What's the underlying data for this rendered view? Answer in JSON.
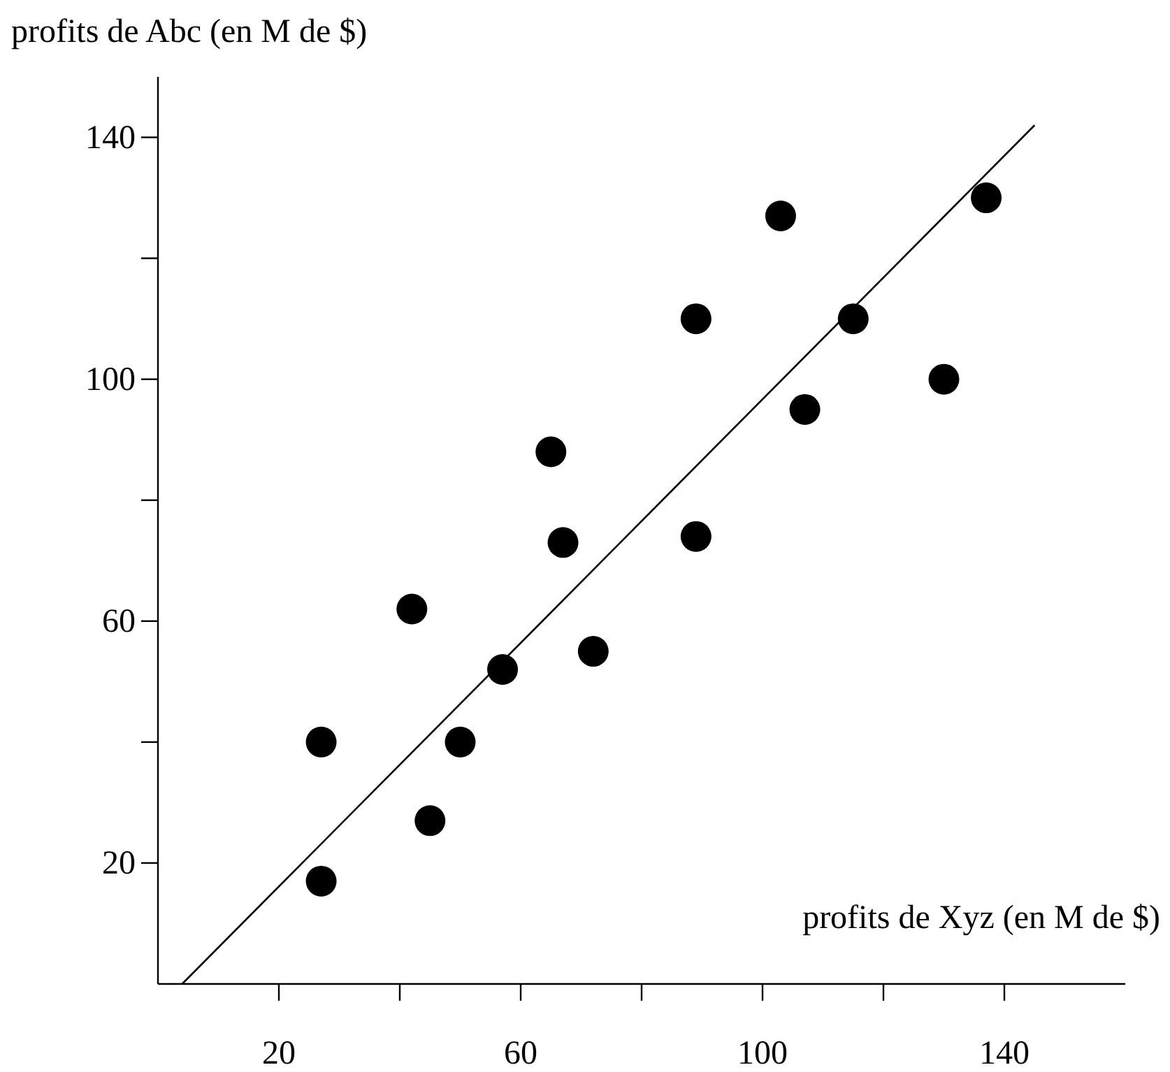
{
  "chart_data": {
    "type": "scatter",
    "xlabel": "profits de Xyz (en M de $)",
    "ylabel": "profits de Abc (en M de $)",
    "xlim": [
      0,
      160
    ],
    "ylim": [
      0,
      150
    ],
    "xticks": [
      20,
      {
        "value": 40,
        "label": null
      },
      60,
      {
        "value": 80,
        "label": null
      },
      100,
      {
        "value": 120,
        "label": null
      },
      140
    ],
    "yticks": [
      20,
      {
        "value": 40,
        "label": null
      },
      60,
      {
        "value": 80,
        "label": null
      },
      100,
      {
        "value": 120,
        "label": null
      },
      140
    ],
    "grid": false,
    "marker": "circle",
    "series": [
      {
        "color": "#000000",
        "x": [
          27,
          27,
          42,
          45,
          50,
          57,
          65,
          67,
          72,
          89,
          89,
          103,
          107,
          115,
          130,
          137
        ],
        "values": [
          40,
          17,
          62,
          27,
          40,
          52,
          88,
          73,
          55,
          110,
          74,
          127,
          95,
          110,
          100,
          130
        ]
      },
      {
        "type": "line",
        "color": "#000000",
        "line_style": "solid",
        "marker": "none",
        "x": [
          4,
          145
        ],
        "values": [
          0,
          142
        ]
      }
    ]
  }
}
